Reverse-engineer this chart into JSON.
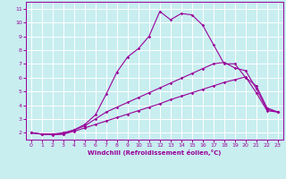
{
  "xlabel": "Windchill (Refroidissement éolien,°C)",
  "bg_color": "#c8eef0",
  "grid_color": "#ffffff",
  "line_color": "#990099",
  "xlim": [
    -0.5,
    23.5
  ],
  "ylim": [
    1.5,
    11.5
  ],
  "xticks": [
    0,
    1,
    2,
    3,
    4,
    5,
    6,
    7,
    8,
    9,
    10,
    11,
    12,
    13,
    14,
    15,
    16,
    17,
    18,
    19,
    20,
    21,
    22,
    23
  ],
  "yticks": [
    2,
    3,
    4,
    5,
    6,
    7,
    8,
    9,
    10,
    11
  ],
  "line1_x": [
    0,
    1,
    2,
    3,
    4,
    5,
    6,
    7,
    8,
    9,
    10,
    11,
    12,
    13,
    14,
    15,
    16,
    17,
    18,
    19,
    20,
    21,
    22,
    23
  ],
  "line1_y": [
    2.0,
    1.9,
    1.85,
    1.9,
    2.1,
    2.35,
    2.6,
    2.85,
    3.1,
    3.35,
    3.6,
    3.85,
    4.1,
    4.4,
    4.65,
    4.9,
    5.15,
    5.4,
    5.65,
    5.85,
    6.05,
    4.9,
    3.6,
    3.5
  ],
  "line2_x": [
    0,
    1,
    2,
    3,
    4,
    5,
    6,
    7,
    8,
    9,
    10,
    11,
    12,
    13,
    14,
    15,
    16,
    17,
    18,
    19,
    20,
    21,
    22,
    23
  ],
  "line2_y": [
    2.0,
    1.9,
    1.9,
    2.0,
    2.2,
    2.5,
    3.0,
    3.5,
    3.85,
    4.2,
    4.55,
    4.9,
    5.25,
    5.6,
    5.95,
    6.3,
    6.65,
    7.0,
    7.1,
    6.7,
    6.5,
    5.2,
    3.7,
    3.5
  ],
  "line3_x": [
    0,
    1,
    2,
    3,
    4,
    5,
    6,
    7,
    8,
    9,
    10,
    11,
    12,
    13,
    14,
    15,
    16,
    17,
    18,
    19,
    20,
    21,
    22,
    23
  ],
  "line3_y": [
    2.0,
    1.9,
    1.9,
    1.9,
    2.2,
    2.6,
    3.3,
    4.8,
    6.4,
    7.5,
    8.1,
    9.0,
    10.8,
    10.2,
    10.65,
    10.55,
    9.8,
    8.4,
    7.0,
    7.0,
    6.0,
    5.4,
    3.8,
    3.5
  ]
}
